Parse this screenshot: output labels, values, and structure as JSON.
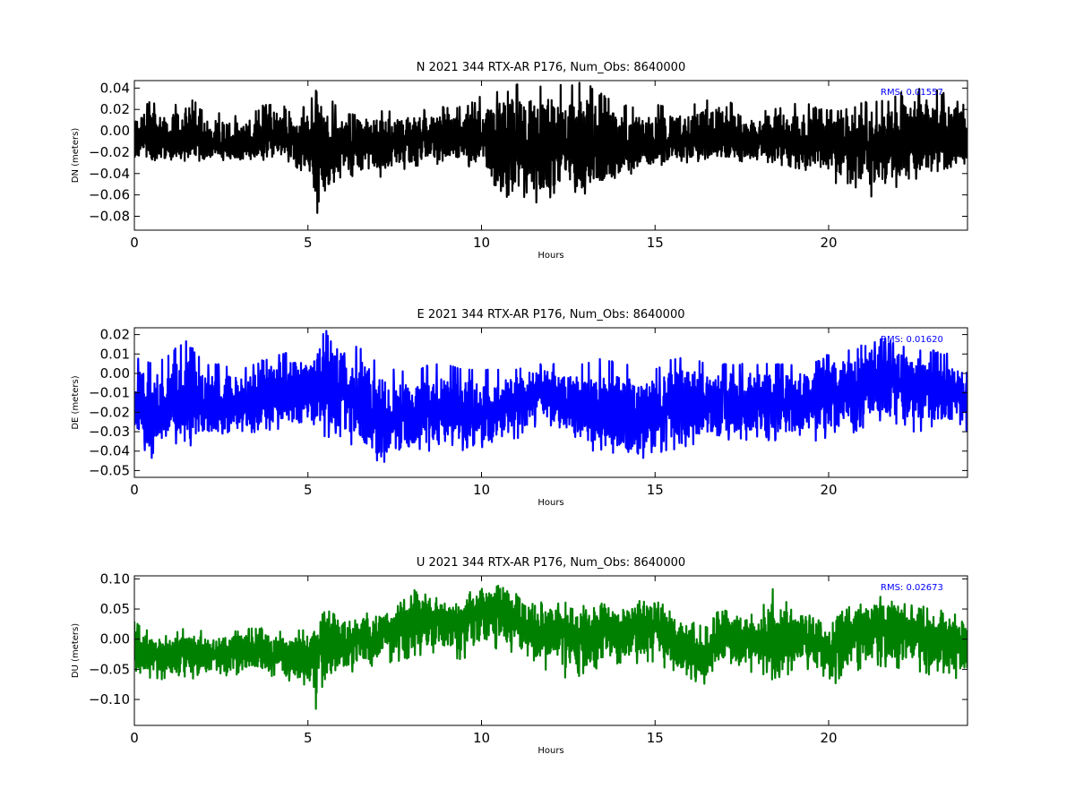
{
  "chart_data": [
    {
      "type": "line",
      "title": "N 2021 344 RTX-AR  P176, Num_Obs: 8640000",
      "xlabel": "Hours",
      "ylabel": "DN (meters)",
      "xlim": [
        0,
        24
      ],
      "ylim": [
        -0.093,
        0.047
      ],
      "xticks": [
        "0",
        "5",
        "10",
        "15",
        "20"
      ],
      "xtick_values": [
        0,
        5,
        10,
        15,
        20
      ],
      "yticks": [
        "0.04",
        "0.02",
        "0.00",
        "−0.02",
        "−0.04",
        "−0.06",
        "−0.08"
      ],
      "ytick_values": [
        0.04,
        0.02,
        0.0,
        -0.02,
        -0.04,
        -0.06,
        -0.08
      ],
      "annotation": "RMS:  0.01557",
      "annotation_color": "#0000ff",
      "color": "#000000",
      "grid": false,
      "series": [
        {
          "x": [
            0,
            0.5,
            1,
            1.5,
            2,
            2.5,
            3,
            3.5,
            4,
            4.5,
            5,
            5.3,
            5.6,
            6,
            6.5,
            7,
            7.5,
            8,
            8.5,
            9,
            9.5,
            10,
            10.5,
            11,
            11.5,
            12,
            12.5,
            13,
            13.5,
            14,
            14.5,
            15,
            15.5,
            16,
            16.5,
            17,
            17.5,
            18,
            18.5,
            19,
            19.5,
            20,
            20.5,
            21,
            21.5,
            22,
            22.5,
            23,
            23.5,
            24
          ],
          "center": [
            -0.008,
            -0.008,
            -0.01,
            -0.01,
            -0.012,
            -0.012,
            -0.015,
            -0.012,
            -0.008,
            -0.01,
            -0.015,
            -0.02,
            -0.02,
            -0.012,
            -0.01,
            -0.012,
            -0.012,
            -0.01,
            -0.008,
            -0.008,
            -0.01,
            -0.01,
            -0.018,
            -0.015,
            -0.012,
            -0.015,
            -0.018,
            -0.018,
            -0.025,
            -0.02,
            -0.018,
            -0.016,
            -0.012,
            -0.01,
            -0.01,
            -0.008,
            -0.008,
            -0.008,
            -0.008,
            -0.01,
            -0.012,
            -0.012,
            -0.015,
            -0.015,
            -0.018,
            -0.012,
            -0.01,
            -0.008,
            -0.01,
            -0.012
          ],
          "max": [
            0.018,
            0.03,
            0.02,
            0.035,
            0.02,
            0.018,
            0.015,
            0.02,
            0.03,
            0.02,
            0.025,
            0.042,
            0.035,
            0.015,
            0.018,
            0.02,
            0.022,
            0.02,
            0.02,
            0.025,
            0.022,
            0.035,
            0.04,
            0.045,
            0.042,
            0.045,
            0.043,
            0.047,
            0.035,
            0.028,
            0.022,
            0.025,
            0.022,
            0.025,
            0.03,
            0.035,
            0.02,
            0.02,
            0.022,
            0.028,
            0.025,
            0.02,
            0.022,
            0.028,
            0.03,
            0.035,
            0.042,
            0.045,
            0.035,
            0.025
          ],
          "min": [
            -0.03,
            -0.035,
            -0.03,
            -0.028,
            -0.03,
            -0.028,
            -0.032,
            -0.03,
            -0.025,
            -0.03,
            -0.045,
            -0.093,
            -0.065,
            -0.04,
            -0.045,
            -0.05,
            -0.04,
            -0.035,
            -0.032,
            -0.03,
            -0.035,
            -0.04,
            -0.06,
            -0.065,
            -0.07,
            -0.065,
            -0.06,
            -0.068,
            -0.055,
            -0.045,
            -0.04,
            -0.035,
            -0.03,
            -0.03,
            -0.028,
            -0.03,
            -0.03,
            -0.03,
            -0.032,
            -0.035,
            -0.04,
            -0.045,
            -0.055,
            -0.06,
            -0.065,
            -0.055,
            -0.05,
            -0.04,
            -0.035,
            -0.03
          ]
        }
      ]
    },
    {
      "type": "line",
      "title": "E 2021 344 RTX-AR  P176, Num_Obs: 8640000",
      "xlabel": "Hours",
      "ylabel": "DE (meters)",
      "xlim": [
        0,
        24
      ],
      "ylim": [
        -0.0535,
        0.0235
      ],
      "xticks": [
        "0",
        "5",
        "10",
        "15",
        "20"
      ],
      "xtick_values": [
        0,
        5,
        10,
        15,
        20
      ],
      "yticks": [
        "0.02",
        "0.01",
        "0.00",
        "−0.01",
        "−0.02",
        "−0.03",
        "−0.04",
        "−0.05"
      ],
      "ytick_values": [
        0.02,
        0.01,
        0.0,
        -0.01,
        -0.02,
        -0.03,
        -0.04,
        -0.05
      ],
      "annotation": "RMS:  0.01620",
      "annotation_color": "#0000ff",
      "color": "#0000ff",
      "grid": false,
      "series": [
        {
          "x": [
            0,
            0.5,
            1,
            1.5,
            2,
            2.5,
            3,
            3.5,
            4,
            4.5,
            5,
            5.5,
            6,
            6.5,
            7,
            7.5,
            8,
            8.5,
            9,
            9.5,
            10,
            10.5,
            11,
            11.5,
            12,
            12.5,
            13,
            13.5,
            14,
            14.5,
            15,
            15.5,
            16,
            16.5,
            17,
            17.5,
            18,
            18.5,
            19,
            19.5,
            20,
            20.5,
            21,
            21.5,
            22,
            22.5,
            23,
            23.5,
            24
          ],
          "center": [
            -0.02,
            -0.02,
            -0.018,
            -0.015,
            -0.018,
            -0.018,
            -0.015,
            -0.012,
            -0.01,
            -0.01,
            -0.008,
            -0.005,
            -0.008,
            -0.015,
            -0.025,
            -0.025,
            -0.022,
            -0.02,
            -0.02,
            -0.02,
            -0.022,
            -0.02,
            -0.015,
            -0.008,
            -0.01,
            -0.018,
            -0.02,
            -0.02,
            -0.022,
            -0.025,
            -0.022,
            -0.018,
            -0.018,
            -0.015,
            -0.015,
            -0.015,
            -0.015,
            -0.015,
            -0.015,
            -0.015,
            -0.012,
            -0.008,
            -0.005,
            -0.002,
            -0.005,
            -0.005,
            -0.008,
            -0.01,
            -0.012
          ],
          "max": [
            0.01,
            0.005,
            0.01,
            0.018,
            0.005,
            0.005,
            0.002,
            0.005,
            0.01,
            0.012,
            0.01,
            0.023,
            0.01,
            0.015,
            0.005,
            0.002,
            0.0,
            0.005,
            0.005,
            0.002,
            0.002,
            0.002,
            0.002,
            0.005,
            0.005,
            0.005,
            0.005,
            0.008,
            0.005,
            0.005,
            0.002,
            0.008,
            0.008,
            0.005,
            0.005,
            0.005,
            0.005,
            0.005,
            0.005,
            0.005,
            0.01,
            0.012,
            0.015,
            0.02,
            0.015,
            0.012,
            0.012,
            0.01,
            0.005
          ],
          "min": [
            -0.035,
            -0.045,
            -0.035,
            -0.038,
            -0.035,
            -0.035,
            -0.033,
            -0.03,
            -0.03,
            -0.03,
            -0.032,
            -0.035,
            -0.035,
            -0.04,
            -0.047,
            -0.045,
            -0.043,
            -0.04,
            -0.04,
            -0.04,
            -0.04,
            -0.038,
            -0.035,
            -0.03,
            -0.03,
            -0.035,
            -0.04,
            -0.04,
            -0.043,
            -0.047,
            -0.043,
            -0.04,
            -0.038,
            -0.035,
            -0.035,
            -0.035,
            -0.035,
            -0.035,
            -0.035,
            -0.035,
            -0.035,
            -0.033,
            -0.03,
            -0.028,
            -0.03,
            -0.03,
            -0.03,
            -0.03,
            -0.03
          ]
        }
      ]
    },
    {
      "type": "line",
      "title": "U 2021 344 RTX-AR  P176, Num_Obs: 8640000",
      "xlabel": "Hours",
      "ylabel": "DU (meters)",
      "xlim": [
        0,
        24
      ],
      "ylim": [
        -0.143,
        0.105
      ],
      "xticks": [
        "0",
        "5",
        "10",
        "15",
        "20"
      ],
      "xtick_values": [
        0,
        5,
        10,
        15,
        20
      ],
      "yticks": [
        "0.10",
        "0.05",
        "0.00",
        "−0.05",
        "−0.10"
      ],
      "ytick_values": [
        0.1,
        0.05,
        0.0,
        -0.05,
        -0.1
      ],
      "annotation": "RMS:  0.02673",
      "annotation_color": "#0000ff",
      "color": "#008000",
      "grid": false,
      "series": [
        {
          "x": [
            0,
            0.5,
            1,
            1.5,
            2,
            2.5,
            3,
            3.5,
            4,
            4.5,
            5,
            5.3,
            5.6,
            6,
            6.5,
            7,
            7.5,
            8,
            8.5,
            9,
            9.5,
            10,
            10.5,
            11,
            11.5,
            12,
            12.5,
            13,
            13.5,
            14,
            14.5,
            15,
            15.5,
            16,
            16.5,
            17,
            17.5,
            18,
            18.5,
            19,
            19.5,
            20,
            20.5,
            21,
            21.5,
            22,
            22.5,
            23,
            23.5,
            24
          ],
          "center": [
            -0.02,
            -0.025,
            -0.025,
            -0.02,
            -0.02,
            -0.025,
            -0.02,
            -0.02,
            -0.025,
            -0.03,
            -0.03,
            -0.015,
            -0.005,
            -0.005,
            0.0,
            0.005,
            0.015,
            0.03,
            0.035,
            0.025,
            0.025,
            0.04,
            0.045,
            0.035,
            0.0,
            0.01,
            0.015,
            0.005,
            0.015,
            0.02,
            0.025,
            0.025,
            0.0,
            -0.015,
            -0.025,
            0.01,
            0.0,
            -0.005,
            -0.01,
            0.0,
            0.005,
            -0.02,
            0.01,
            0.015,
            0.02,
            0.015,
            0.01,
            0.005,
            0.0,
            -0.005
          ],
          "max": [
            0.03,
            0.01,
            0.005,
            0.02,
            0.015,
            0.01,
            0.015,
            0.02,
            0.015,
            0.01,
            0.02,
            0.045,
            0.05,
            0.04,
            0.045,
            0.05,
            0.055,
            0.085,
            0.075,
            0.065,
            0.07,
            0.095,
            0.1,
            0.09,
            0.06,
            0.065,
            0.06,
            0.055,
            0.065,
            0.06,
            0.07,
            0.065,
            0.05,
            0.03,
            0.02,
            0.065,
            0.045,
            0.05,
            0.095,
            0.045,
            0.04,
            0.02,
            0.055,
            0.065,
            0.075,
            0.06,
            0.06,
            0.05,
            0.045,
            0.04
          ],
          "min": [
            -0.06,
            -0.065,
            -0.07,
            -0.065,
            -0.07,
            -0.065,
            -0.06,
            -0.055,
            -0.065,
            -0.075,
            -0.08,
            -0.143,
            -0.08,
            -0.06,
            -0.05,
            -0.045,
            -0.04,
            -0.03,
            -0.025,
            -0.03,
            -0.035,
            -0.02,
            -0.015,
            -0.025,
            -0.05,
            -0.055,
            -0.07,
            -0.06,
            -0.045,
            -0.045,
            -0.04,
            -0.04,
            -0.055,
            -0.07,
            -0.075,
            -0.045,
            -0.05,
            -0.06,
            -0.07,
            -0.055,
            -0.05,
            -0.09,
            -0.06,
            -0.055,
            -0.045,
            -0.05,
            -0.055,
            -0.06,
            -0.065,
            -0.065
          ]
        }
      ]
    }
  ]
}
